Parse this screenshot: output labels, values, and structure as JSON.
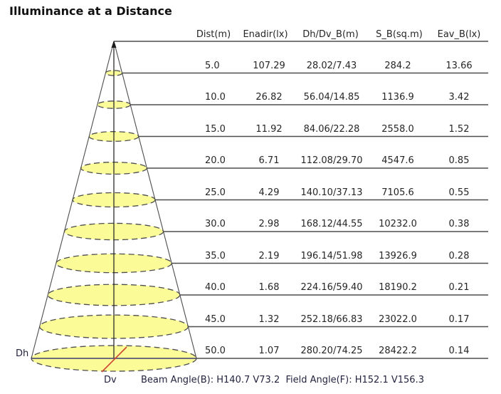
{
  "title": "Illuminance at a Distance",
  "colors": {
    "background": "#ffffff",
    "beam_fill": "#fbfb97",
    "beam_stroke": "#4d4d4d",
    "line": "#4d4d4d",
    "axis": "#1a1a1a",
    "dh_line": "#3d3d73",
    "dv_line": "#cc4433",
    "label_navy": "#23233f",
    "text": "#262626"
  },
  "cone": {
    "dh_label": "Dh",
    "dv_label": "Dv"
  },
  "table": {
    "headers": [
      "Dist(m)",
      "Enadir(lx)",
      "Dh/Dv_B(m)",
      "S_B(sq.m)",
      "Eav_B(lx)"
    ],
    "rows": [
      [
        "5.0",
        "107.29",
        "28.02/7.43",
        "284.2",
        "13.66"
      ],
      [
        "10.0",
        "26.82",
        "56.04/14.85",
        "1136.9",
        "3.42"
      ],
      [
        "15.0",
        "11.92",
        "84.06/22.28",
        "2558.0",
        "1.52"
      ],
      [
        "20.0",
        "6.71",
        "112.08/29.70",
        "4547.6",
        "0.85"
      ],
      [
        "25.0",
        "4.29",
        "140.10/37.13",
        "7105.6",
        "0.55"
      ],
      [
        "30.0",
        "2.98",
        "168.12/44.55",
        "10232.0",
        "0.38"
      ],
      [
        "35.0",
        "2.19",
        "196.14/51.98",
        "13926.9",
        "0.28"
      ],
      [
        "40.0",
        "1.68",
        "224.16/59.40",
        "18190.2",
        "0.21"
      ],
      [
        "45.0",
        "1.32",
        "252.18/66.83",
        "23022.0",
        "0.17"
      ],
      [
        "50.0",
        "1.07",
        "280.20/74.25",
        "28422.2",
        "0.14"
      ]
    ]
  },
  "footer": {
    "dv_label": "Dv",
    "beam_angle_text": "Beam Angle(B): H140.7 V73.2  Field Angle(F): H152.1 V156.3"
  },
  "chart_data": {
    "type": "table",
    "title": "Illuminance at a Distance",
    "columns": [
      "Dist(m)",
      "Enadir(lx)",
      "Dh_B(m)",
      "Dv_B(m)",
      "S_B(sq.m)",
      "Eav_B(lx)"
    ],
    "distances_m": [
      5.0,
      10.0,
      15.0,
      20.0,
      25.0,
      30.0,
      35.0,
      40.0,
      45.0,
      50.0
    ],
    "enadir_lx": [
      107.29,
      26.82,
      11.92,
      6.71,
      4.29,
      2.98,
      2.19,
      1.68,
      1.32,
      1.07
    ],
    "dh_b_m": [
      28.02,
      56.04,
      84.06,
      112.08,
      140.1,
      168.12,
      196.14,
      224.16,
      252.18,
      280.2
    ],
    "dv_b_m": [
      7.43,
      14.85,
      22.28,
      29.7,
      37.13,
      44.55,
      51.98,
      59.4,
      66.83,
      74.25
    ],
    "s_b_sqm": [
      284.2,
      1136.9,
      2558.0,
      4547.6,
      7105.6,
      10232.0,
      13926.9,
      18190.2,
      23022.0,
      28422.2
    ],
    "eav_b_lx": [
      13.66,
      3.42,
      1.52,
      0.85,
      0.55,
      0.38,
      0.28,
      0.21,
      0.17,
      0.14
    ],
    "beam_angle": {
      "label": "Beam Angle(B)",
      "H": 140.7,
      "V": 73.2
    },
    "field_angle": {
      "label": "Field Angle(F)",
      "H": 152.1,
      "V": 156.3
    },
    "layout": "light-cone diagram on left with yellow beam ellipses at each distance, value table on right, one underlined row per distance"
  }
}
